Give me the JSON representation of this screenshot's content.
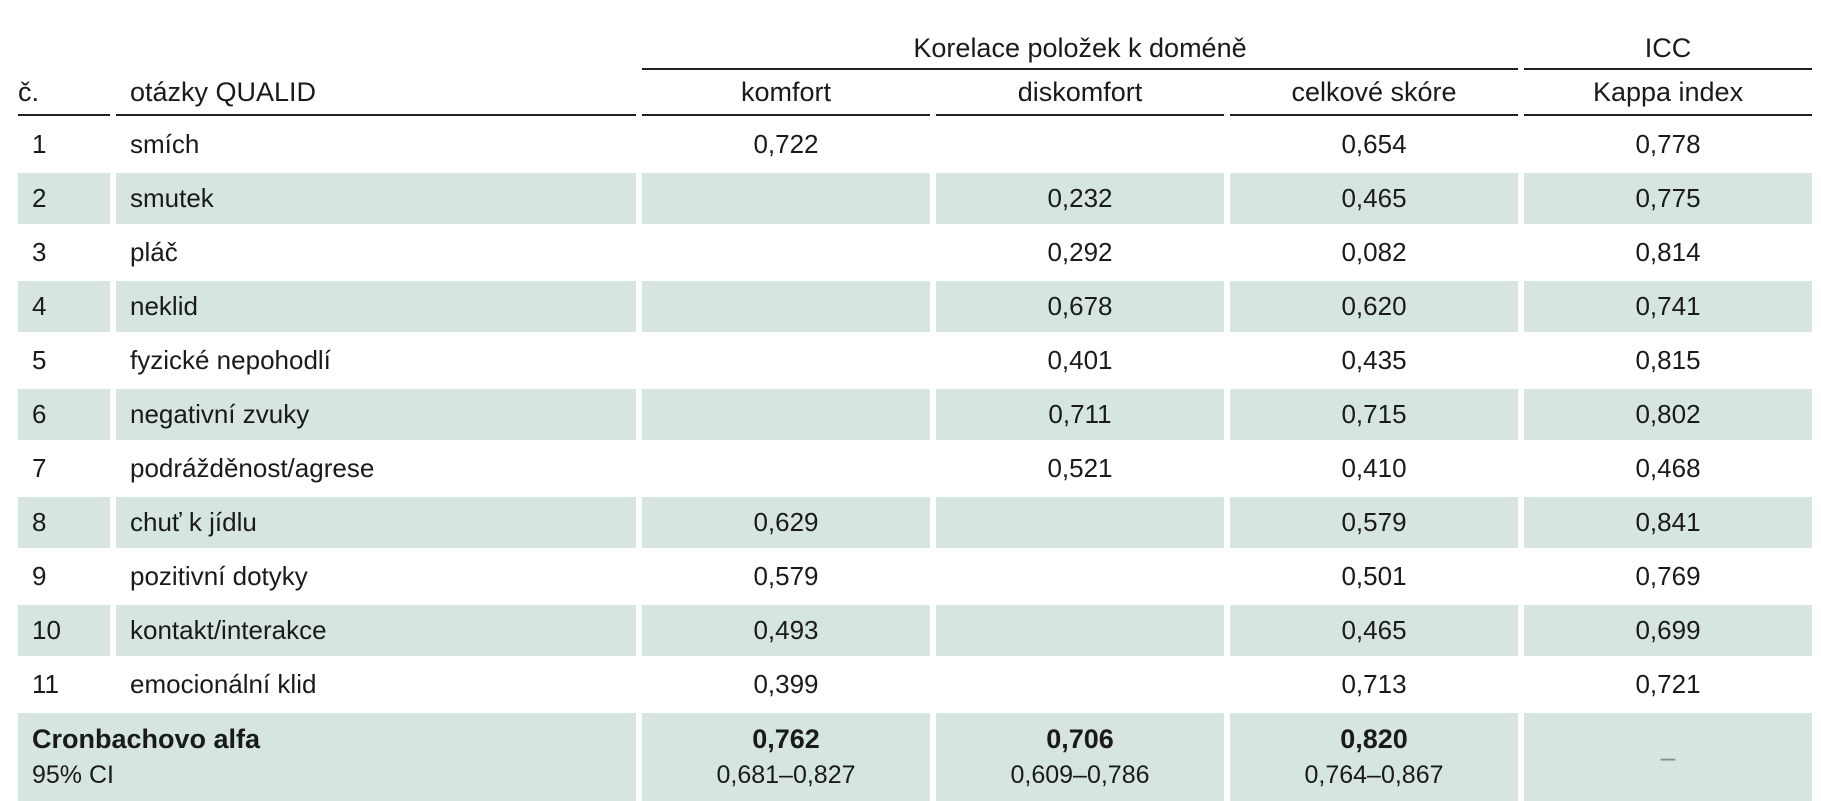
{
  "header": {
    "group_label": "Korelace položek k doméně",
    "icc_label": "ICC",
    "col_num": "č.",
    "col_question": "otázky QUALID",
    "col_comfort": "komfort",
    "col_discomfort": "diskomfort",
    "col_total": "celkové skóre",
    "col_kappa": "Kappa index"
  },
  "rows": [
    {
      "num": "1",
      "question": "smích",
      "comfort": "0,722",
      "discomfort": "",
      "total": "0,654",
      "kappa": "0,778"
    },
    {
      "num": "2",
      "question": "smutek",
      "comfort": "",
      "discomfort": "0,232",
      "total": "0,465",
      "kappa": "0,775"
    },
    {
      "num": "3",
      "question": "pláč",
      "comfort": "",
      "discomfort": "0,292",
      "total": "0,082",
      "kappa": "0,814"
    },
    {
      "num": "4",
      "question": "neklid",
      "comfort": "",
      "discomfort": "0,678",
      "total": "0,620",
      "kappa": "0,741"
    },
    {
      "num": "5",
      "question": "fyzické nepohodlí",
      "comfort": "",
      "discomfort": "0,401",
      "total": "0,435",
      "kappa": "0,815"
    },
    {
      "num": "6",
      "question": "negativní zvuky",
      "comfort": "",
      "discomfort": "0,711",
      "total": "0,715",
      "kappa": "0,802"
    },
    {
      "num": "7",
      "question": "podrážděnost/agrese",
      "comfort": "",
      "discomfort": "0,521",
      "total": "0,410",
      "kappa": "0,468"
    },
    {
      "num": "8",
      "question": "chuť k jídlu",
      "comfort": "0,629",
      "discomfort": "",
      "total": "0,579",
      "kappa": "0,841"
    },
    {
      "num": "9",
      "question": "pozitivní dotyky",
      "comfort": "0,579",
      "discomfort": "",
      "total": "0,501",
      "kappa": "0,769"
    },
    {
      "num": "10",
      "question": "kontakt/interakce",
      "comfort": "0,493",
      "discomfort": "",
      "total": "0,465",
      "kappa": "0,699"
    },
    {
      "num": "11",
      "question": "emocionální klid",
      "comfort": "0,399",
      "discomfort": "",
      "total": "0,713",
      "kappa": "0,721"
    }
  ],
  "summary": {
    "label": "Cronbachovo alfa",
    "sublabel": "95% CI",
    "comfort": "0,762",
    "comfort_ci": "0,681–0,827",
    "discomfort": "0,706",
    "discomfort_ci": "0,609–0,786",
    "total": "0,820",
    "total_ci": "0,764–0,867",
    "kappa": "–"
  }
}
